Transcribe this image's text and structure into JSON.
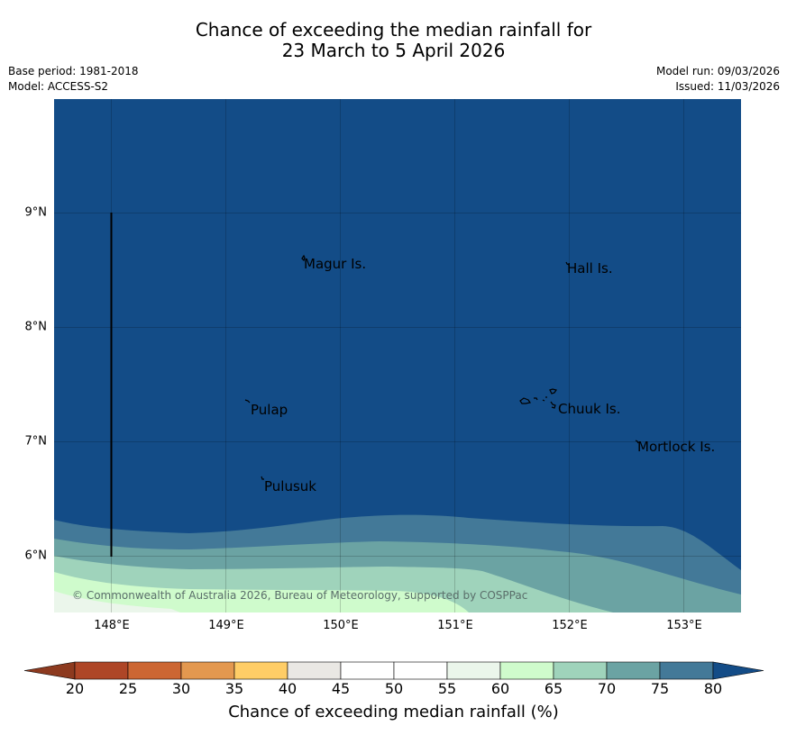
{
  "title": {
    "line1": "Chance of exceeding the median rainfall for",
    "line2": "23 March to 5 April 2026"
  },
  "info": {
    "base_period": "Base period: 1981-2018",
    "model": "Model: ACCESS-S2",
    "model_run": "Model run: 09/03/2026",
    "issued": "Issued: 11/03/2026"
  },
  "map": {
    "latitude_labels": [
      "9°N",
      "8°N",
      "7°N",
      "6°N"
    ],
    "longitude_labels": [
      "148°E",
      "149°E",
      "150°E",
      "151°E",
      "152°E",
      "153°E"
    ],
    "places": [
      "Magur Is.",
      "Hall Is.",
      "Pulap",
      "Chuuk Is.",
      "Mortlock Is.",
      "Pulusuk"
    ],
    "copyright": "© Commonwealth of Australia 2026, Bureau of Meteorology, supported by COSPPac",
    "colors": {
      "above_80": "#134c87",
      "75_80": "#437998",
      "70_75": "#6ba3a3",
      "65_70": "#9fd3bb",
      "60_65": "#cffbcc",
      "55_60": "#ebf6eb"
    }
  },
  "colorbar": {
    "label": "Chance of exceeding median rainfall (%)",
    "ticks": [
      "20",
      "25",
      "30",
      "35",
      "40",
      "45",
      "50",
      "55",
      "60",
      "65",
      "70",
      "75",
      "80"
    ],
    "colors": [
      "#ae4627",
      "#cc6633",
      "#e3984f",
      "#ffcd66",
      "#eae8e4",
      "#ffffff",
      "#ffffff",
      "#ebf6eb",
      "#cffbcc",
      "#9fd3bb",
      "#6ba3a3",
      "#437998"
    ],
    "low_extend_color": "#8d3a1f",
    "high_extend_color": "#134c87"
  }
}
